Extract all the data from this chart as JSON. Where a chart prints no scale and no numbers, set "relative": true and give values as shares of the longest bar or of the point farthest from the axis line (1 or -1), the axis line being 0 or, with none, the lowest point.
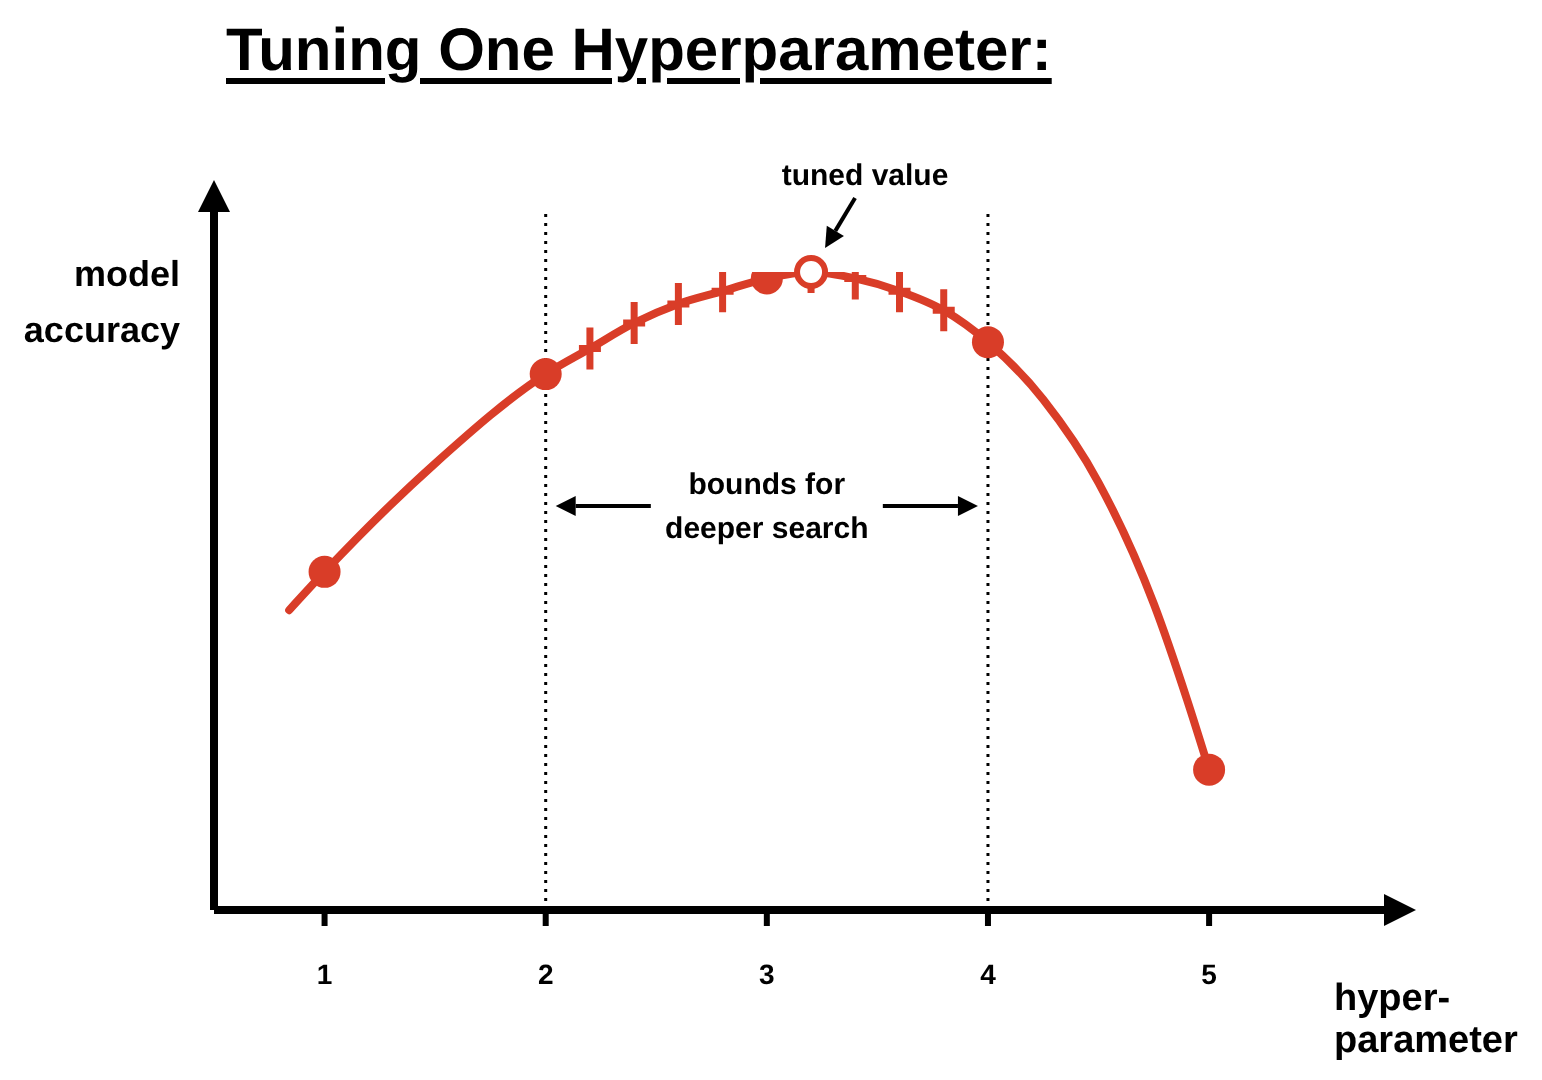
{
  "chart_data": {
    "type": "line",
    "title": "Tuning One Hyperparameter:",
    "xlabel": "hyper-parameter",
    "ylabel": "model accuracy",
    "relative": true,
    "xlim": [
      0.5,
      5.8
    ],
    "xticks": [
      1,
      2,
      3,
      4,
      5
    ],
    "series": [
      {
        "color": "#d93d28",
        "marker": "none",
        "x": [
          0.84,
          1,
          1.5,
          2,
          2.2,
          2.4,
          2.6,
          2.8,
          3,
          3.2,
          3.4,
          3.6,
          3.8,
          4,
          4.25,
          4.5,
          4.75,
          4.9,
          5
        ],
        "values": [
          0.47,
          0.53,
          0.7,
          0.84,
          0.88,
          0.92,
          0.95,
          0.97,
          0.99,
          1,
          0.99,
          0.97,
          0.94,
          0.89,
          0.8,
          0.67,
          0.48,
          0.33,
          0.22
        ]
      },
      {
        "type": "scatter",
        "color": "#d93d28",
        "marker": "circle",
        "x": [
          1,
          2,
          3,
          4,
          5
        ],
        "values": [
          0.53,
          0.84,
          0.99,
          0.89,
          0.22
        ]
      },
      {
        "type": "scatter",
        "color": "#d93d28",
        "marker": "cross",
        "x": [
          2.2,
          2.4,
          2.6,
          2.8,
          3.2,
          3.4,
          3.6,
          3.8
        ],
        "values": [
          0.88,
          0.92,
          0.95,
          0.97,
          1,
          0.99,
          0.97,
          0.94
        ]
      }
    ],
    "ref_lines": [
      {
        "axis": "x",
        "value": 2,
        "color": "#000000",
        "line_style": "dotted"
      },
      {
        "axis": "x",
        "value": 4,
        "color": "#000000",
        "line_style": "dotted"
      }
    ],
    "annotations": [
      {
        "text": "tuned value",
        "x": 3.2,
        "y": 1
      },
      "bounds for deeper search"
    ]
  }
}
